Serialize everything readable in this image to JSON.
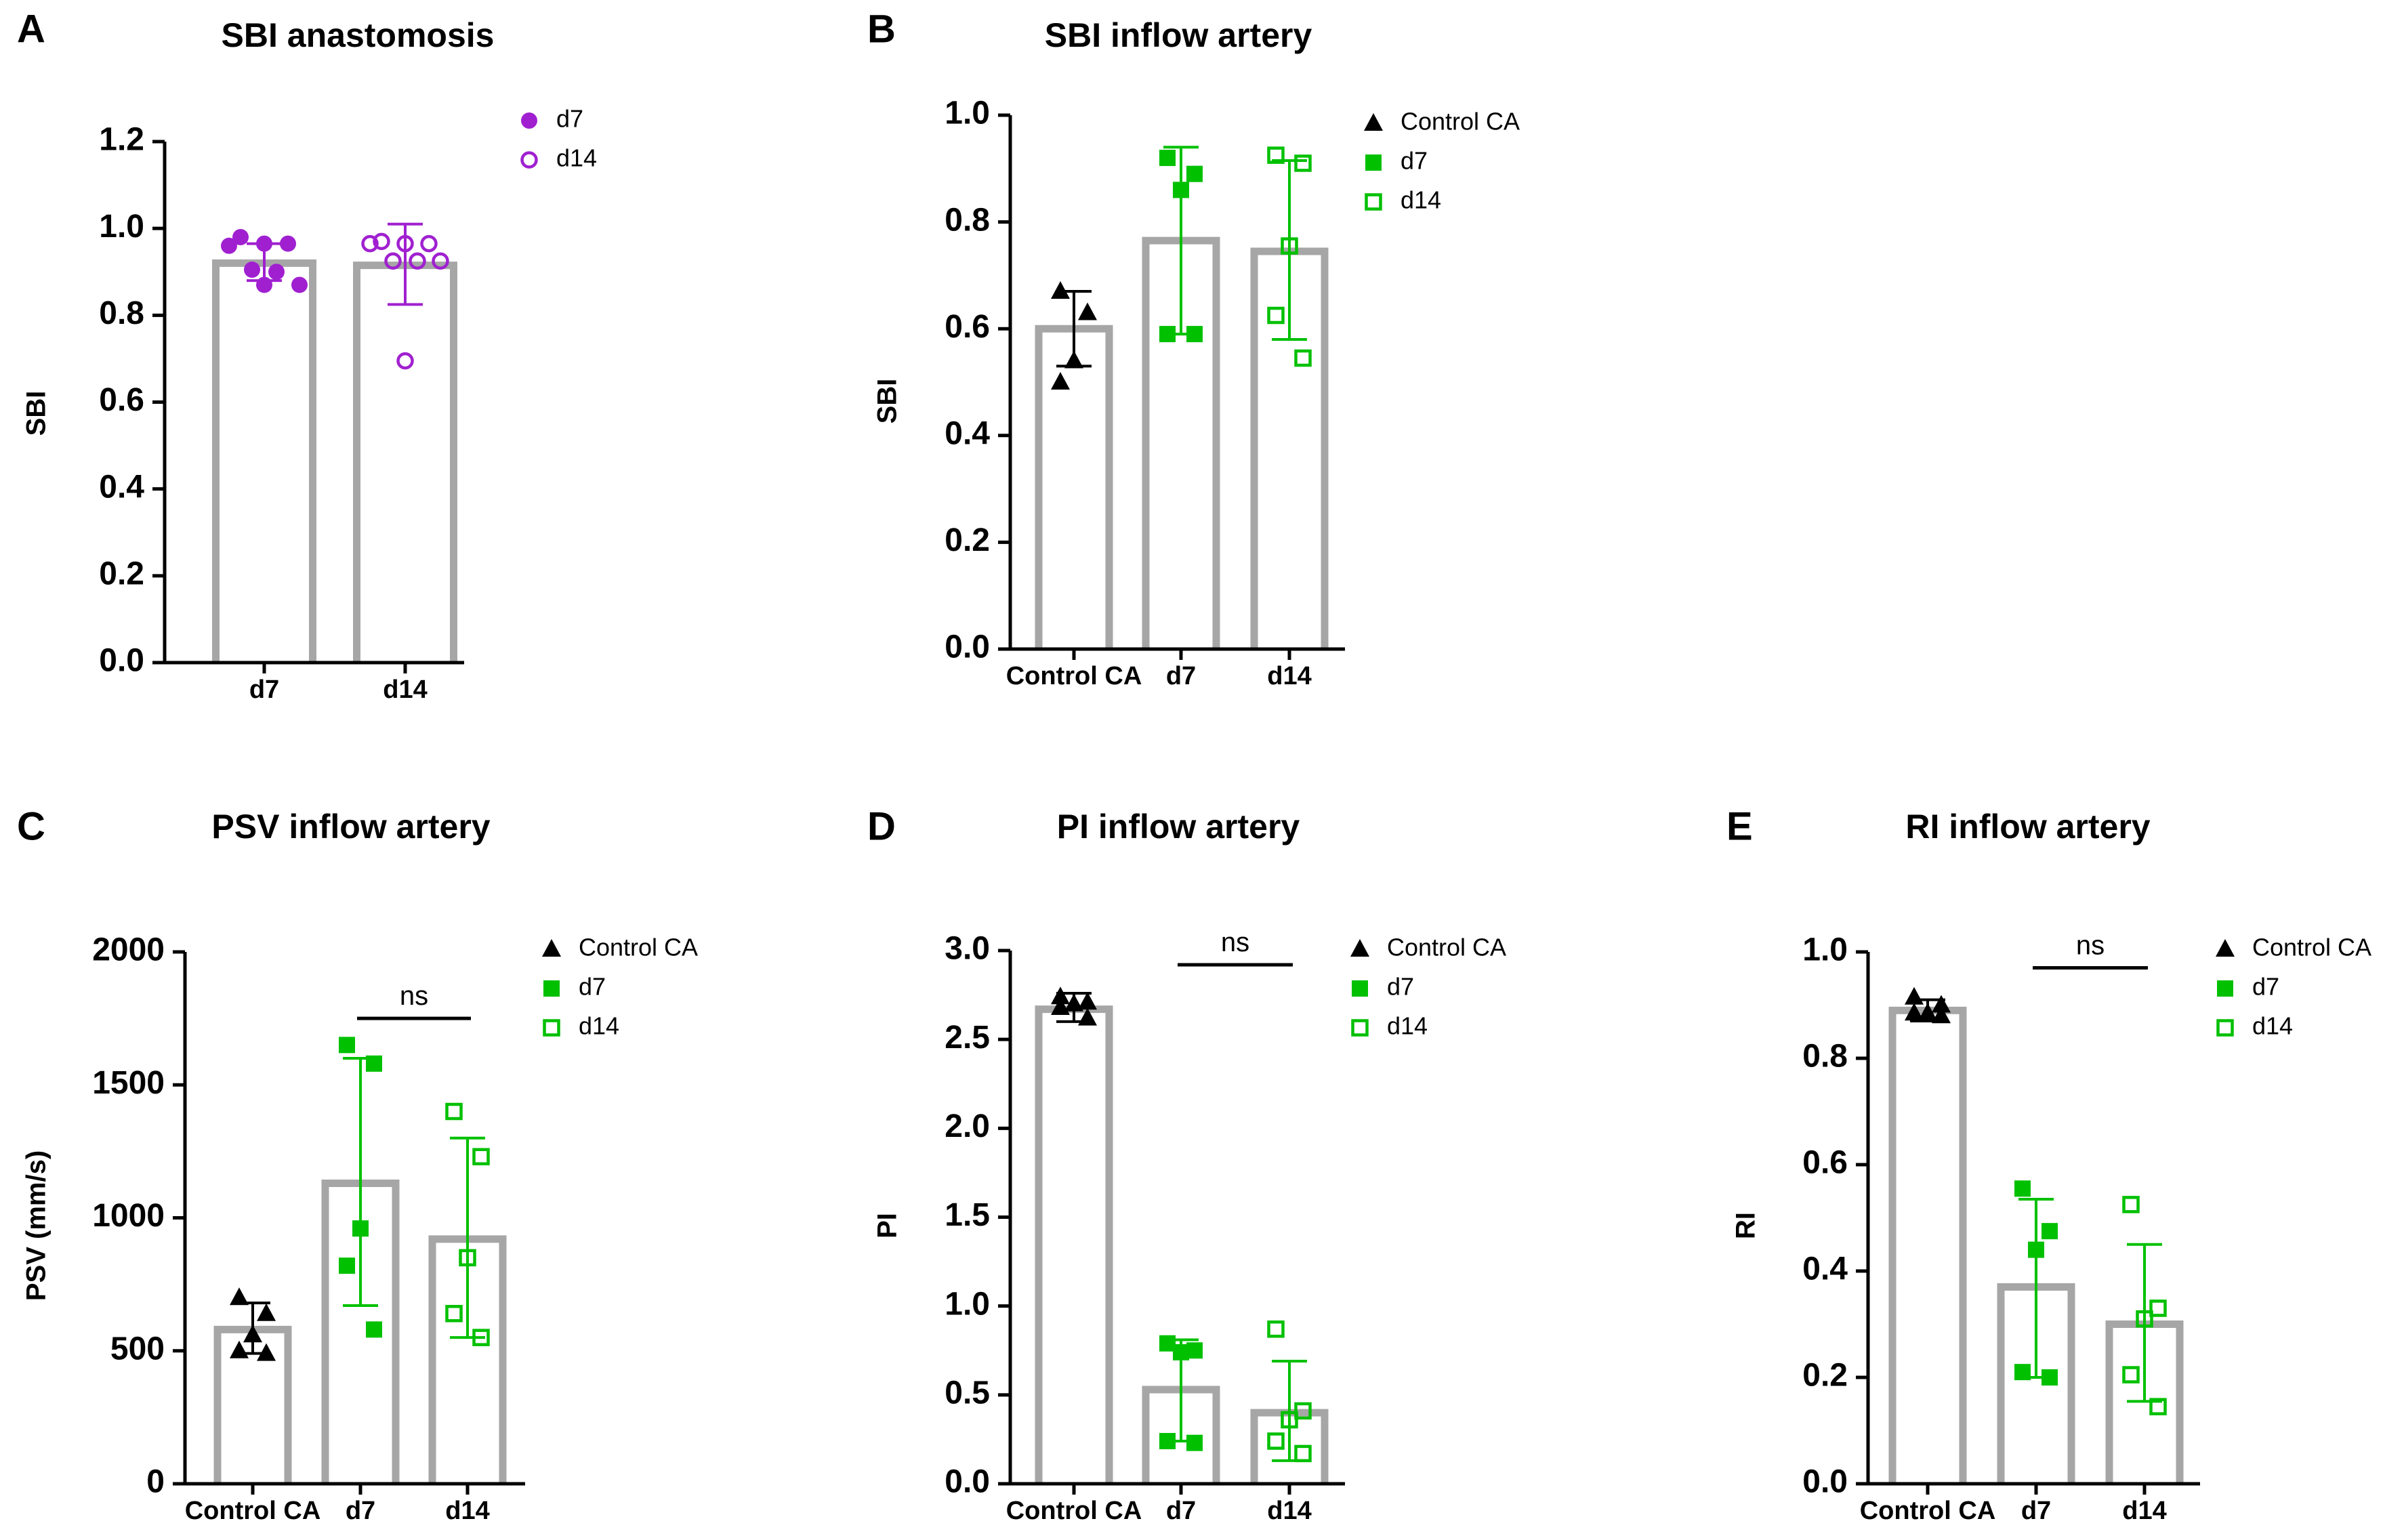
{
  "colors": {
    "black": "#000000",
    "green": "#00c000",
    "purple": "#a020d0",
    "bar": "#a6a6a6"
  },
  "chart_data": [
    {
      "panel": "A",
      "type": "bar",
      "title": "SBI anastomosis",
      "ylabel": "SBI",
      "xlabel": "",
      "ylim": [
        0,
        1.2
      ],
      "yticks": [
        0.0,
        0.2,
        0.4,
        0.6,
        0.8,
        1.0,
        1.2
      ],
      "ytick_labels": [
        "0.0",
        "0.2",
        "0.4",
        "0.6",
        "0.8",
        "1.0",
        "1.2"
      ],
      "categories": [
        "d7",
        "d14"
      ],
      "means": [
        0.92,
        0.915
      ],
      "sd": [
        [
          0.88,
          0.965
        ],
        [
          0.825,
          1.01
        ]
      ],
      "points": [
        [
          0.98,
          0.965,
          0.965,
          0.96,
          0.905,
          0.9,
          0.87,
          0.87
        ],
        [
          0.97,
          0.965,
          0.965,
          0.965,
          0.925,
          0.925,
          0.925,
          0.695
        ]
      ],
      "markers": [
        "filled-circle",
        "open-circle"
      ],
      "series_colors": [
        "purple",
        "purple"
      ],
      "legend": [
        {
          "label": "d7",
          "marker": "filled-circle",
          "color": "purple"
        },
        {
          "label": "d14",
          "marker": "open-circle",
          "color": "purple"
        }
      ],
      "annotation": null
    },
    {
      "panel": "B",
      "type": "bar",
      "title": "SBI inflow artery",
      "ylabel": "SBI",
      "xlabel": "",
      "ylim": [
        0,
        1.0
      ],
      "yticks": [
        0.0,
        0.2,
        0.4,
        0.6,
        0.8,
        1.0
      ],
      "ytick_labels": [
        "0.0",
        "0.2",
        "0.4",
        "0.6",
        "0.8",
        "1.0"
      ],
      "categories": [
        "Control CA",
        "d7",
        "d14"
      ],
      "means": [
        0.6,
        0.765,
        0.745
      ],
      "sd": [
        [
          0.53,
          0.67
        ],
        [
          0.59,
          0.94
        ],
        [
          0.58,
          0.915
        ]
      ],
      "points": [
        [
          0.67,
          0.63,
          0.54,
          0.5
        ],
        [
          0.92,
          0.89,
          0.86,
          0.59,
          0.59
        ],
        [
          0.925,
          0.91,
          0.755,
          0.625,
          0.545
        ]
      ],
      "markers": [
        "triangle",
        "filled-square",
        "open-square"
      ],
      "series_colors": [
        "black",
        "green",
        "green"
      ],
      "legend": [
        {
          "label": "Control CA",
          "marker": "triangle",
          "color": "black"
        },
        {
          "label": "d7",
          "marker": "filled-square",
          "color": "green"
        },
        {
          "label": "d14",
          "marker": "open-square",
          "color": "green"
        }
      ],
      "annotation": null
    },
    {
      "panel": "C",
      "type": "bar",
      "title": "PSV inflow artery",
      "ylabel": "PSV (mm/s)",
      "xlabel": "",
      "ylim": [
        0,
        2000
      ],
      "yticks": [
        0,
        500,
        1000,
        1500,
        2000
      ],
      "ytick_labels": [
        "0",
        "500",
        "1000",
        "1500",
        "2000"
      ],
      "categories": [
        "Control CA",
        "d7",
        "d14"
      ],
      "means": [
        580,
        1130,
        920
      ],
      "sd": [
        [
          490,
          680
        ],
        [
          670,
          1600
        ],
        [
          550,
          1300
        ]
      ],
      "points": [
        [
          700,
          640,
          560,
          500,
          490
        ],
        [
          1650,
          1580,
          960,
          820,
          580
        ],
        [
          1400,
          1230,
          850,
          640,
          550
        ]
      ],
      "markers": [
        "triangle",
        "filled-square",
        "open-square"
      ],
      "series_colors": [
        "black",
        "green",
        "green"
      ],
      "legend": [
        {
          "label": "Control CA",
          "marker": "triangle",
          "color": "black"
        },
        {
          "label": "d7",
          "marker": "filled-square",
          "color": "green"
        },
        {
          "label": "d14",
          "marker": "open-square",
          "color": "green"
        }
      ],
      "annotation": {
        "text": "ns",
        "from": 1,
        "to": 2,
        "y": 1750
      }
    },
    {
      "panel": "D",
      "type": "bar",
      "title": "PI inflow artery",
      "ylabel": "PI",
      "xlabel": "",
      "ylim": [
        0,
        3.0
      ],
      "yticks": [
        0.0,
        0.5,
        1.0,
        1.5,
        2.0,
        2.5,
        3.0
      ],
      "ytick_labels": [
        "0.0",
        "0.5",
        "1.0",
        "1.5",
        "2.0",
        "2.5",
        "3.0"
      ],
      "categories": [
        "Control CA",
        "d7",
        "d14"
      ],
      "means": [
        2.67,
        0.53,
        0.4
      ],
      "sd": [
        [
          2.6,
          2.76
        ],
        [
          0.24,
          0.81
        ],
        [
          0.13,
          0.69
        ]
      ],
      "points": [
        [
          2.74,
          2.71,
          2.7,
          2.68,
          2.62
        ],
        [
          0.79,
          0.75,
          0.74,
          0.24,
          0.23
        ],
        [
          0.87,
          0.41,
          0.36,
          0.24,
          0.17
        ]
      ],
      "markers": [
        "triangle",
        "filled-square",
        "open-square"
      ],
      "series_colors": [
        "black",
        "green",
        "green"
      ],
      "legend": [
        {
          "label": "Control CA",
          "marker": "triangle",
          "color": "black"
        },
        {
          "label": "d7",
          "marker": "filled-square",
          "color": "green"
        },
        {
          "label": "d14",
          "marker": "open-square",
          "color": "green"
        }
      ],
      "annotation": {
        "text": "ns",
        "from": 1,
        "to": 2,
        "y": 2.92
      }
    },
    {
      "panel": "E",
      "type": "bar",
      "title": "RI inflow artery",
      "ylabel": "RI",
      "xlabel": "",
      "ylim": [
        0,
        1.0
      ],
      "yticks": [
        0.0,
        0.2,
        0.4,
        0.6,
        0.8,
        1.0
      ],
      "ytick_labels": [
        "0.0",
        "0.2",
        "0.4",
        "0.6",
        "0.8",
        "1.0"
      ],
      "categories": [
        "Control CA",
        "d7",
        "d14"
      ],
      "means": [
        0.89,
        0.37,
        0.3
      ],
      "sd": [
        [
          0.87,
          0.91
        ],
        [
          0.2,
          0.535
        ],
        [
          0.155,
          0.45
        ]
      ],
      "points": [
        [
          0.915,
          0.9,
          0.885,
          0.885,
          0.88
        ],
        [
          0.555,
          0.475,
          0.44,
          0.21,
          0.2
        ],
        [
          0.525,
          0.33,
          0.31,
          0.205,
          0.145
        ]
      ],
      "markers": [
        "triangle",
        "filled-square",
        "open-square"
      ],
      "series_colors": [
        "black",
        "green",
        "green"
      ],
      "legend": [
        {
          "label": "Control CA",
          "marker": "triangle",
          "color": "black"
        },
        {
          "label": "d7",
          "marker": "filled-square",
          "color": "green"
        },
        {
          "label": "d14",
          "marker": "open-square",
          "color": "green"
        }
      ],
      "annotation": {
        "text": "ns",
        "from": 1,
        "to": 2,
        "y": 0.97
      }
    }
  ]
}
